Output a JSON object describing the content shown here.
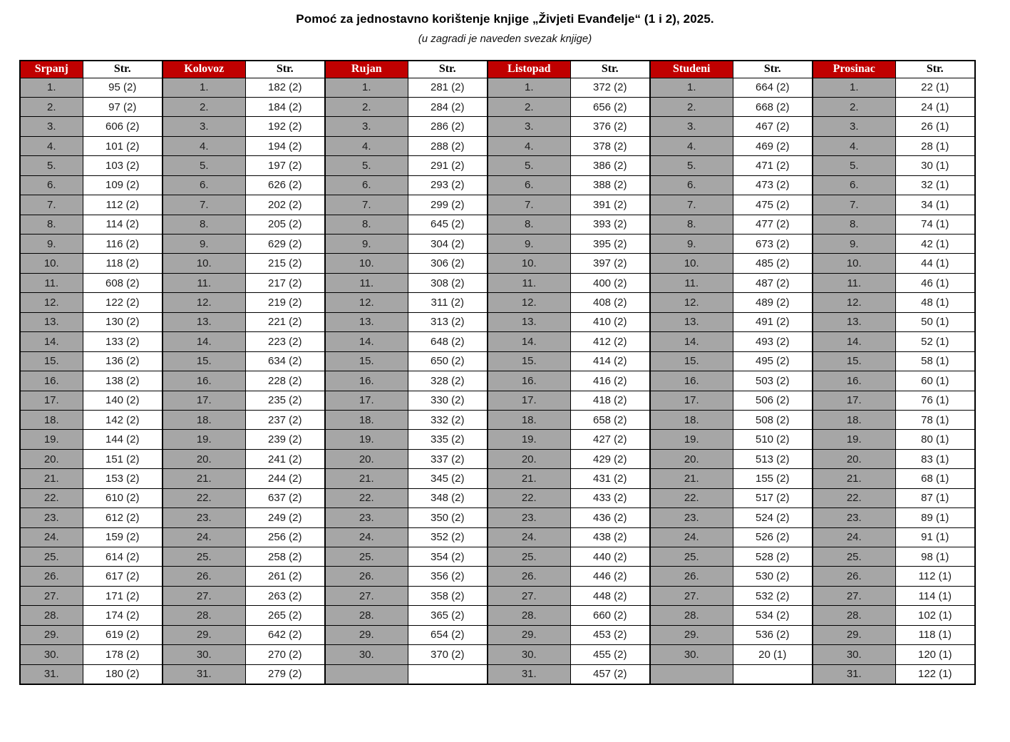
{
  "document": {
    "title": "Pomoć za jednostavno korištenje knjige „Živjeti Evanđelje“ (1 i 2), 2025.",
    "subtitle": "(u zagradi je naveden svezak knjige)"
  },
  "colors": {
    "month_header_bg": "#C00000",
    "month_header_text": "#FFFFFF",
    "day_cell_bg": "#A6A6A6",
    "page_cell_bg": "#FFFFFF",
    "border": "#000000"
  },
  "table": {
    "page_column_header": "Str.",
    "row_count": 31,
    "months": [
      {
        "name": "Srpanj",
        "days": [
          "1.",
          "2.",
          "3.",
          "4.",
          "5.",
          "6.",
          "7.",
          "8.",
          "9.",
          "10.",
          "11.",
          "12.",
          "13.",
          "14.",
          "15.",
          "16.",
          "17.",
          "18.",
          "19.",
          "20.",
          "21.",
          "22.",
          "23.",
          "24.",
          "25.",
          "26.",
          "27.",
          "28.",
          "29.",
          "30.",
          "31."
        ],
        "pages": [
          "95 (2)",
          "97 (2)",
          "606 (2)",
          "101 (2)",
          "103 (2)",
          "109 (2)",
          "112 (2)",
          "114 (2)",
          "116 (2)",
          "118 (2)",
          "608 (2)",
          "122 (2)",
          "130 (2)",
          "133 (2)",
          "136 (2)",
          "138 (2)",
          "140 (2)",
          "142 (2)",
          "144 (2)",
          "151 (2)",
          "153 (2)",
          "610 (2)",
          "612 (2)",
          "159 (2)",
          "614 (2)",
          "617 (2)",
          "171 (2)",
          "174 (2)",
          "619 (2)",
          "178 (2)",
          "180 (2)"
        ]
      },
      {
        "name": "Kolovoz",
        "days": [
          "1.",
          "2.",
          "3.",
          "4.",
          "5.",
          "6.",
          "7.",
          "8.",
          "9.",
          "10.",
          "11.",
          "12.",
          "13.",
          "14.",
          "15.",
          "16.",
          "17.",
          "18.",
          "19.",
          "20.",
          "21.",
          "22.",
          "23.",
          "24.",
          "25.",
          "26.",
          "27.",
          "28.",
          "29.",
          "30.",
          "31."
        ],
        "pages": [
          "182 (2)",
          "184 (2)",
          "192 (2)",
          "194 (2)",
          "197 (2)",
          "626 (2)",
          "202 (2)",
          "205 (2)",
          "629 (2)",
          "215 (2)",
          "217 (2)",
          "219 (2)",
          "221 (2)",
          "223 (2)",
          "634 (2)",
          "228 (2)",
          "235 (2)",
          "237 (2)",
          "239 (2)",
          "241 (2)",
          "244 (2)",
          "637 (2)",
          "249 (2)",
          "256 (2)",
          "258 (2)",
          "261 (2)",
          "263 (2)",
          "265 (2)",
          "642 (2)",
          "270 (2)",
          "279  (2)"
        ]
      },
      {
        "name": "Rujan",
        "days": [
          "1.",
          "2.",
          "3.",
          "4.",
          "5.",
          "6.",
          "7.",
          "8.",
          "9.",
          "10.",
          "11.",
          "12.",
          "13.",
          "14.",
          "15.",
          "16.",
          "17.",
          "18.",
          "19.",
          "20.",
          "21.",
          "22.",
          "23.",
          "24.",
          "25.",
          "26.",
          "27.",
          "28.",
          "29.",
          "30.",
          ""
        ],
        "pages": [
          "281 (2)",
          "284 (2)",
          "286 (2)",
          "288 (2)",
          "291 (2)",
          "293 (2)",
          "299 (2)",
          "645 (2)",
          "304 (2)",
          "306 (2)",
          "308 (2)",
          "311 (2)",
          "313 (2)",
          "648 (2)",
          "650 (2)",
          "328 (2)",
          "330 (2)",
          "332 (2)",
          "335 (2)",
          "337 (2)",
          "345 (2)",
          "348 (2)",
          "350 (2)",
          "352 (2)",
          "354 (2)",
          "356 (2)",
          "358 (2)",
          "365 (2)",
          "654 (2)",
          "370 (2)",
          ""
        ]
      },
      {
        "name": "Listopad",
        "days": [
          "1.",
          "2.",
          "3.",
          "4.",
          "5.",
          "6.",
          "7.",
          "8.",
          "9.",
          "10.",
          "11.",
          "12.",
          "13.",
          "14.",
          "15.",
          "16.",
          "17.",
          "18.",
          "19.",
          "20.",
          "21.",
          "22.",
          "23.",
          "24.",
          "25.",
          "26.",
          "27.",
          "28.",
          "29.",
          "30.",
          "31."
        ],
        "pages": [
          "372 (2)",
          "656 (2)",
          "376 (2)",
          "378 (2)",
          "386 (2)",
          "388 (2)",
          "391 (2)",
          "393 (2)",
          "395 (2)",
          "397 (2)",
          "400 (2)",
          "408 (2)",
          "410 (2)",
          "412 (2)",
          "414 (2)",
          "416 (2)",
          "418 (2)",
          "658 (2)",
          "427 (2)",
          "429 (2)",
          "431 (2)",
          "433 (2)",
          "436 (2)",
          "438 (2)",
          "440 (2)",
          "446 (2)",
          "448 (2)",
          "660 (2)",
          "453 (2)",
          "455 (2)",
          "457 (2)"
        ]
      },
      {
        "name": "Studeni",
        "days": [
          "1.",
          "2.",
          "3.",
          "4.",
          "5.",
          "6.",
          "7.",
          "8.",
          "9.",
          "10.",
          "11.",
          "12.",
          "13.",
          "14.",
          "15.",
          "16.",
          "17.",
          "18.",
          "19.",
          "20.",
          "21.",
          "22.",
          "23.",
          "24.",
          "25.",
          "26.",
          "27.",
          "28.",
          "29.",
          "30.",
          ""
        ],
        "pages": [
          "664 (2)",
          "668 (2)",
          "467 (2)",
          "469 (2)",
          "471 (2)",
          "473 (2)",
          "475 (2)",
          "477 (2)",
          "673 (2)",
          "485 (2)",
          "487 (2)",
          "489 (2)",
          "491 (2)",
          "493 (2)",
          "495 (2)",
          "503 (2)",
          "506 (2)",
          "508 (2)",
          "510 (2)",
          "513 (2)",
          "155 (2)",
          "517 (2)",
          "524 (2)",
          "526 (2)",
          "528 (2)",
          "530 (2)",
          "532 (2)",
          "534 (2)",
          "536 (2)",
          "20 (1)",
          ""
        ]
      },
      {
        "name": "Prosinac",
        "days": [
          "1.",
          "2.",
          "3.",
          "4.",
          "5.",
          "6.",
          "7.",
          "8.",
          "9.",
          "10.",
          "11.",
          "12.",
          "13.",
          "14.",
          "15.",
          "16.",
          "17.",
          "18.",
          "19.",
          "20.",
          "21.",
          "22.",
          "23.",
          "24.",
          "25.",
          "26.",
          "27.",
          "28.",
          "29.",
          "30.",
          "31."
        ],
        "pages": [
          "22 (1)",
          "24 (1)",
          "26 (1)",
          "28 (1)",
          "30 (1)",
          "32 (1)",
          "34 (1)",
          "74 (1)",
          "42 (1)",
          "44 (1)",
          "46 (1)",
          "48 (1)",
          "50 (1)",
          "52 (1)",
          "58 (1)",
          "60 (1)",
          "76 (1)",
          "78 (1)",
          "80 (1)",
          "83 (1)",
          "68 (1)",
          "87 (1)",
          "89 (1)",
          "91 (1)",
          "98 (1)",
          "112 (1)",
          "114 (1)",
          "102 (1)",
          "118 (1)",
          "120 (1)",
          "122 (1)"
        ]
      }
    ]
  }
}
